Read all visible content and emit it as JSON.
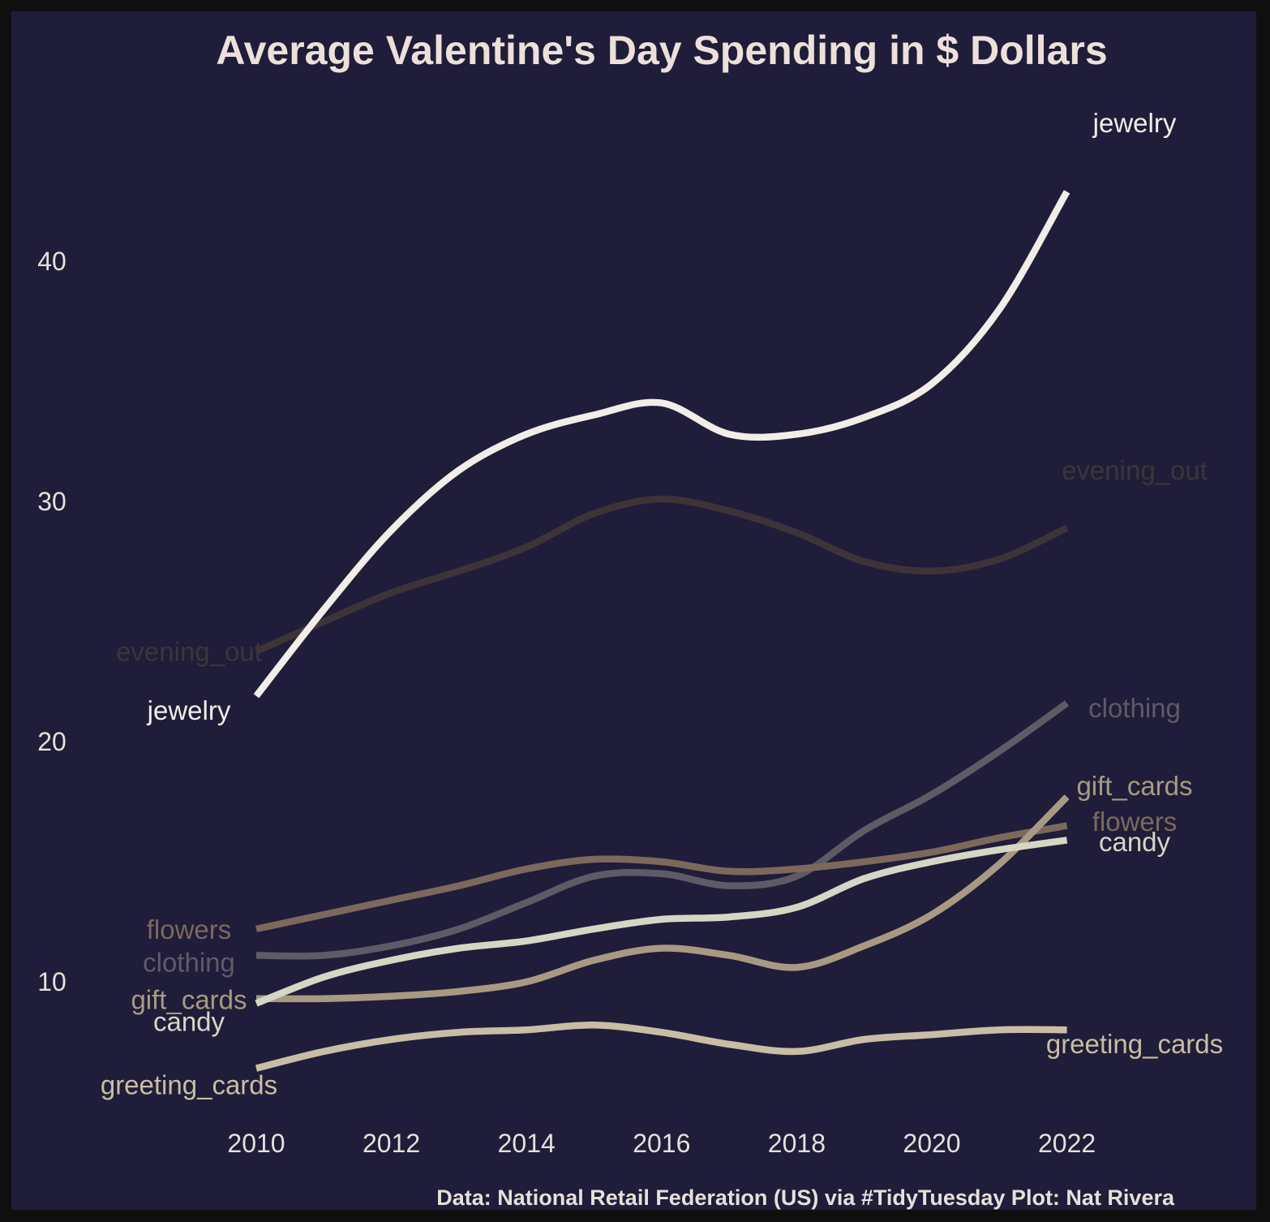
{
  "chart_data": {
    "type": "line",
    "title": "Average Valentine's Day Spending in $ Dollars",
    "caption": "Data: National Retail Federation (US) via #TidyTuesday  Plot: Nat Rivera",
    "x": [
      2010,
      2011,
      2012,
      2013,
      2014,
      2015,
      2016,
      2017,
      2018,
      2019,
      2020,
      2021,
      2022
    ],
    "x_ticks": [
      "2010",
      "2012",
      "2014",
      "2016",
      "2018",
      "2020",
      "2022"
    ],
    "y_ticks": [
      "10",
      "20",
      "30",
      "40"
    ],
    "xlim": [
      2010,
      2022
    ],
    "ylim": [
      10,
      40
    ],
    "grid": false,
    "legend": "none (direct labels at both ends of each line)",
    "background": "#1f1d39",
    "series": [
      {
        "name": "evening_out",
        "color": "#3d3439",
        "values": [
          23.76,
          25.0,
          26.2,
          27.1,
          28.1,
          29.5,
          30.1,
          29.6,
          28.7,
          27.5,
          27.1,
          27.6,
          28.9
        ]
      },
      {
        "name": "jewelry",
        "color": "#f2ede6",
        "values": [
          21.9,
          25.5,
          28.8,
          31.3,
          32.8,
          33.6,
          34.1,
          32.8,
          32.8,
          33.5,
          34.9,
          38.0,
          42.9
        ]
      },
      {
        "name": "clothing",
        "color": "#5e5b66",
        "values": [
          11.1,
          11.1,
          11.5,
          12.2,
          13.3,
          14.4,
          14.5,
          14.0,
          14.4,
          16.3,
          17.8,
          19.6,
          21.6
        ]
      },
      {
        "name": "flowers",
        "color": "#7d685c",
        "values": [
          12.2,
          12.8,
          13.4,
          14.0,
          14.7,
          15.1,
          15.0,
          14.6,
          14.7,
          15.0,
          15.4,
          16.0,
          16.5
        ]
      },
      {
        "name": "gift_cards",
        "color": "#a89a82",
        "values": [
          9.3,
          9.3,
          9.4,
          9.6,
          10.0,
          10.9,
          11.4,
          11.1,
          10.6,
          11.5,
          12.8,
          14.9,
          17.7
        ]
      },
      {
        "name": "candy",
        "color": "#d6d6c4",
        "values": [
          9.1,
          10.2,
          10.9,
          11.4,
          11.7,
          12.2,
          12.6,
          12.7,
          13.1,
          14.3,
          15.0,
          15.5,
          15.9
        ]
      },
      {
        "name": "greeting_cards",
        "color": "#c9bda5",
        "values": [
          6.4,
          7.1,
          7.6,
          7.9,
          8.0,
          8.2,
          7.9,
          7.4,
          7.1,
          7.6,
          7.8,
          8.0,
          8.0
        ]
      }
    ]
  }
}
